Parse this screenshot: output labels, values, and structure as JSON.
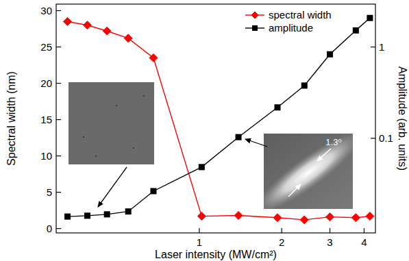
{
  "chart_data": {
    "type": "line",
    "x_label": "Laser intensity (MW/cm²)",
    "y_label": "Spectral width (nm)",
    "y2_label": "Amplitude (arb. units)",
    "log": true,
    "grid": false,
    "legend": "upper right",
    "x": [
      0.33,
      0.39,
      0.46,
      0.55,
      0.68,
      1.02,
      1.39,
      1.93,
      2.42,
      3.0,
      3.73,
      4.2
    ],
    "series": [
      {
        "name": "spectral width",
        "color": "#ff0000",
        "marker": "diamond",
        "line_style": "solid",
        "values": [
          28.5,
          28,
          27.2,
          26.2,
          23.5,
          1.7,
          1.8,
          1.5,
          1.2,
          1.6,
          1.5,
          1.7
        ]
      },
      {
        "name": "amplitude",
        "color": "#000000",
        "marker": "square",
        "line_style": "solid",
        "axis": "y2",
        "values": [
          0.0139,
          0.0142,
          0.0147,
          0.0158,
          0.0264,
          0.0484,
          0.103,
          0.218,
          0.378,
          0.832,
          1.52,
          2.08
        ]
      }
    ],
    "xlim": [
      0.3,
      4.4
    ],
    "xticks": [
      1,
      2,
      3,
      4
    ],
    "ylim": [
      -0.6,
      30.9
    ],
    "yticks": [
      0,
      5,
      10,
      15,
      20,
      25,
      30
    ],
    "y2lim": [
      0.0092,
      2.95
    ],
    "y2ticks": [
      0.1,
      1
    ],
    "annotations": [
      {
        "text": "1.3⁰"
      }
    ]
  }
}
